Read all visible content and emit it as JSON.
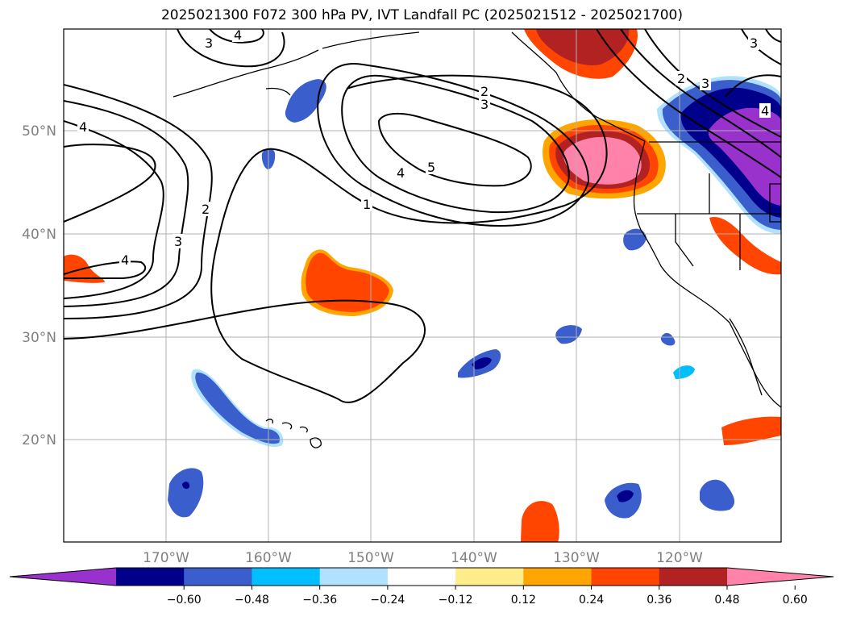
{
  "title": "2025021300 F072 300 hPa PV, IVT Landfall PC (2025021512 - 2025021700)",
  "map": {
    "lat_labels": [
      "50°N",
      "40°N",
      "30°N",
      "20°N"
    ],
    "lon_labels": [
      "170°W",
      "160°W",
      "150°W",
      "140°W",
      "130°W",
      "120°W"
    ],
    "contour_labels": [
      "1",
      "2",
      "2",
      "3",
      "3",
      "3",
      "4",
      "4",
      "4",
      "4",
      "5",
      "2",
      "3",
      "4",
      "3"
    ]
  },
  "colorbar": {
    "ticks": [
      "−0.60",
      "−0.48",
      "−0.36",
      "−0.24",
      "−0.12",
      "0.12",
      "0.24",
      "0.36",
      "0.48",
      "0.60"
    ],
    "colors": [
      "#9932cc",
      "#00008b",
      "#3a5fcd",
      "#00bfff",
      "#b0e2ff",
      "#ffffff",
      "#ffec8b",
      "#ffa500",
      "#ff4500",
      "#b22222",
      "#ff82ab"
    ]
  },
  "colors": {
    "grid": "#b0b0b0",
    "coast": "#000000",
    "contour": "#000000"
  }
}
